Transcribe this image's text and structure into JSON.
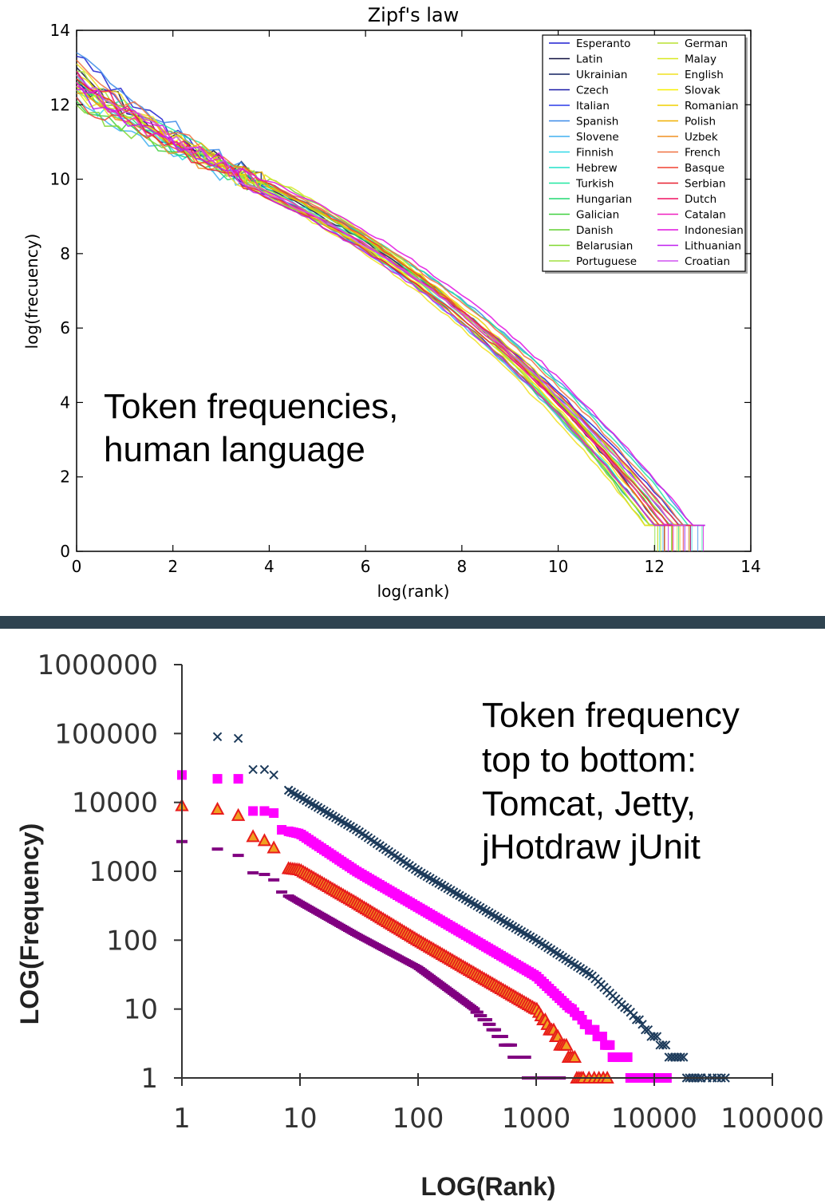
{
  "chart_data": [
    {
      "type": "line",
      "title": "Zipf's law",
      "xlabel": "log(rank)",
      "ylabel": "log(frecuency)",
      "xlim": [
        0,
        14
      ],
      "ylim": [
        0,
        14
      ],
      "xticks": [
        "0",
        "2",
        "4",
        "6",
        "8",
        "10",
        "12",
        "14"
      ],
      "yticks": [
        "0",
        "2",
        "4",
        "6",
        "8",
        "10",
        "12",
        "14"
      ],
      "grid": false,
      "legend_position": "top-right",
      "annotation": [
        "Token frequencies,",
        "human language"
      ],
      "series": [
        {
          "name": "Esperanto",
          "color": "#1f1fd0",
          "start": 13.3,
          "end_x": 12.6
        },
        {
          "name": "Latin",
          "color": "#101040",
          "start": 13.0,
          "end_x": 12.2
        },
        {
          "name": "Ukrainian",
          "color": "#102060",
          "start": 12.7,
          "end_x": 12.1
        },
        {
          "name": "Czech",
          "color": "#1a1aa8",
          "start": 12.6,
          "end_x": 12.0
        },
        {
          "name": "Italian",
          "color": "#2a3ae8",
          "start": 12.9,
          "end_x": 12.4
        },
        {
          "name": "Spanish",
          "color": "#3a8ae8",
          "start": 13.4,
          "end_x": 12.8
        },
        {
          "name": "Slovene",
          "color": "#40b0f0",
          "start": 12.2,
          "end_x": 11.9
        },
        {
          "name": "Finnish",
          "color": "#30d8e8",
          "start": 12.3,
          "end_x": 12.5
        },
        {
          "name": "Hebrew",
          "color": "#20e0c8",
          "start": 12.4,
          "end_x": 12.0
        },
        {
          "name": "Turkish",
          "color": "#20e8a0",
          "start": 12.8,
          "end_x": 12.7
        },
        {
          "name": "Hungarian",
          "color": "#20d870",
          "start": 12.5,
          "end_x": 12.3
        },
        {
          "name": "Galician",
          "color": "#40d040",
          "start": 12.1,
          "end_x": 11.9
        },
        {
          "name": "Danish",
          "color": "#60d030",
          "start": 12.6,
          "end_x": 12.2
        },
        {
          "name": "Belarusian",
          "color": "#80d830",
          "start": 12.0,
          "end_x": 11.8
        },
        {
          "name": "Portuguese",
          "color": "#a0e040",
          "start": 12.9,
          "end_x": 12.5
        },
        {
          "name": "German",
          "color": "#b8e030",
          "start": 12.7,
          "end_x": 12.3
        },
        {
          "name": "Malay",
          "color": "#d8e820",
          "start": 12.4,
          "end_x": 11.9
        },
        {
          "name": "English",
          "color": "#f0e020",
          "start": 13.1,
          "end_x": 11.8
        },
        {
          "name": "Slovak",
          "color": "#f8f000",
          "start": 12.5,
          "end_x": 12.1
        },
        {
          "name": "Romanian",
          "color": "#f0d000",
          "start": 12.8,
          "end_x": 12.4
        },
        {
          "name": "Polish",
          "color": "#f0b000",
          "start": 12.6,
          "end_x": 12.2
        },
        {
          "name": "Uzbek",
          "color": "#f09020",
          "start": 12.3,
          "end_x": 12.0
        },
        {
          "name": "French",
          "color": "#f07040",
          "start": 13.2,
          "end_x": 12.6
        },
        {
          "name": "Basque",
          "color": "#f04030",
          "start": 12.2,
          "end_x": 12.1
        },
        {
          "name": "Serbian",
          "color": "#e82030",
          "start": 12.7,
          "end_x": 12.3
        },
        {
          "name": "Dutch",
          "color": "#f01060",
          "start": 12.9,
          "end_x": 12.5
        },
        {
          "name": "Catalan",
          "color": "#f020c0",
          "start": 12.5,
          "end_x": 12.2
        },
        {
          "name": "Indonesian",
          "color": "#e010e0",
          "start": 12.6,
          "end_x": 12.8
        },
        {
          "name": "Lithuanian",
          "color": "#c020f0",
          "start": 12.4,
          "end_x": 12.0
        },
        {
          "name": "Croatian",
          "color": "#d050f0",
          "start": 12.8,
          "end_x": 12.4
        }
      ]
    },
    {
      "type": "scatter",
      "xlabel": "LOG(Rank)",
      "ylabel": "LOG(Frequency)",
      "xscale": "log",
      "yscale": "log",
      "xlim": [
        1,
        100000
      ],
      "ylim": [
        1,
        1000000
      ],
      "xticks": [
        "1",
        "10",
        "100",
        "1000",
        "10000",
        "100000"
      ],
      "yticks": [
        "1",
        "10",
        "100",
        "1000",
        "10000",
        "100000",
        "1000000"
      ],
      "grid": false,
      "annotation": [
        "Token frequency",
        "top to bottom:",
        "Tomcat, Jetty,",
        "jHotdraw jUnit"
      ],
      "series": [
        {
          "marker": "x",
          "color": "#1c3a5a",
          "max_rank": 25000,
          "points": [
            [
              2,
              90000
            ],
            [
              3,
              85000
            ],
            [
              4,
              30000
            ],
            [
              5,
              30000
            ],
            [
              6,
              25000
            ],
            [
              8,
              15000
            ],
            [
              10,
              12000
            ],
            [
              30,
              4000
            ],
            [
              100,
              1000
            ],
            [
              1000,
              100
            ],
            [
              3000,
              30
            ],
            [
              10000,
              4
            ],
            [
              15000,
              2
            ],
            [
              25000,
              1
            ]
          ]
        },
        {
          "marker": "square",
          "color": "#ff00ff",
          "max_rank": 8000,
          "points": [
            [
              1,
              25000
            ],
            [
              2,
              22000
            ],
            [
              3,
              22000
            ],
            [
              4,
              7500
            ],
            [
              5,
              7500
            ],
            [
              6,
              7000
            ],
            [
              7,
              4000
            ],
            [
              10,
              3500
            ],
            [
              30,
              1000
            ],
            [
              100,
              300
            ],
            [
              1000,
              30
            ],
            [
              3000,
              5
            ],
            [
              5000,
              2
            ],
            [
              8000,
              1
            ]
          ]
        },
        {
          "marker": "triangle",
          "color": "#e81c1c",
          "max_rank": 2500,
          "points": [
            [
              1,
              9000
            ],
            [
              2,
              8000
            ],
            [
              3,
              6500
            ],
            [
              4,
              3200
            ],
            [
              5,
              2800
            ],
            [
              6,
              2200
            ],
            [
              8,
              1100
            ],
            [
              10,
              1050
            ],
            [
              30,
              350
            ],
            [
              100,
              100
            ],
            [
              1000,
              10
            ],
            [
              2000,
              2
            ],
            [
              2500,
              1
            ]
          ]
        },
        {
          "marker": "dash",
          "color": "#800080",
          "max_rank": 1000,
          "points": [
            [
              1,
              2700
            ],
            [
              2,
              2100
            ],
            [
              3,
              1700
            ],
            [
              4,
              950
            ],
            [
              5,
              900
            ],
            [
              6,
              750
            ],
            [
              7,
              500
            ],
            [
              10,
              350
            ],
            [
              30,
              120
            ],
            [
              100,
              40
            ],
            [
              300,
              10
            ],
            [
              500,
              4
            ],
            [
              1000,
              1
            ]
          ]
        }
      ]
    }
  ]
}
